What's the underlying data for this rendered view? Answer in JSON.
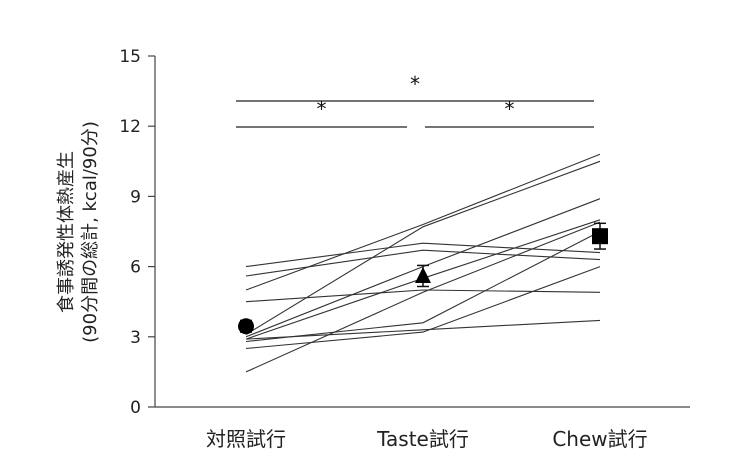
{
  "chart_data": {
    "type": "line",
    "categories": [
      "対照試行",
      "Taste試行",
      "Chew試行"
    ],
    "ylabel_line1": "食事誘発性体熱産生",
    "ylabel_line2": "(90分間の総計, kcal/90分)",
    "ylim": [
      0,
      15
    ],
    "yticks": [
      0,
      3,
      6,
      9,
      12,
      15
    ],
    "individuals": [
      [
        6.0,
        7.0,
        6.6
      ],
      [
        5.6,
        6.7,
        6.3
      ],
      [
        5.0,
        7.8,
        10.8
      ],
      [
        4.5,
        5.0,
        4.9
      ],
      [
        3.1,
        7.7,
        10.5
      ],
      [
        3.0,
        6.0,
        8.9
      ],
      [
        2.9,
        5.5,
        8.0
      ],
      [
        2.8,
        3.6,
        7.5
      ],
      [
        2.9,
        3.3,
        3.7
      ],
      [
        2.5,
        3.2,
        6.0
      ],
      [
        1.5,
        4.9,
        7.9
      ]
    ],
    "means": [
      {
        "value": 3.45,
        "error": 0.25,
        "marker": "circle"
      },
      {
        "value": 5.6,
        "error": 0.45,
        "marker": "triangle"
      },
      {
        "value": 7.3,
        "error": 0.55,
        "marker": "square"
      }
    ],
    "significance": [
      {
        "from": 0,
        "to": 2,
        "label": "*"
      },
      {
        "from": 0,
        "to": 1,
        "label": "*"
      },
      {
        "from": 1,
        "to": 2,
        "label": "*"
      }
    ],
    "grid": false,
    "legend": "none"
  }
}
